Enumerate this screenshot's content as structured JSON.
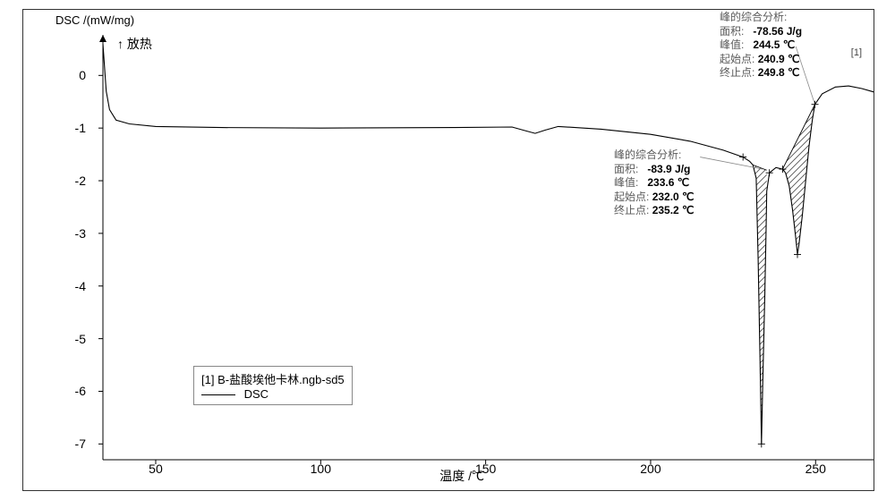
{
  "chart": {
    "type": "line",
    "ylabel": "DSC /(mW/mg)",
    "xlabel": "温度 /℃",
    "exo_label": "↑ 放热",
    "background_color": "#ffffff",
    "axis_color": "#000000",
    "line_color": "#000000",
    "hatch_color": "#555555",
    "frame_color": "#333333",
    "xlim": [
      34,
      270
    ],
    "ylim": [
      -7.3,
      0.6
    ],
    "xticks": [
      50,
      100,
      150,
      200,
      250
    ],
    "yticks": [
      -7,
      -6,
      -5,
      -4,
      -3,
      -2,
      -1,
      0
    ],
    "tick_fontsize": 14,
    "label_fontsize": 13,
    "series_mark": "[1]",
    "data": [
      [
        34,
        0.6
      ],
      [
        35,
        -0.3
      ],
      [
        36,
        -0.65
      ],
      [
        38,
        -0.85
      ],
      [
        42,
        -0.92
      ],
      [
        50,
        -0.97
      ],
      [
        70,
        -0.99
      ],
      [
        100,
        -1.0
      ],
      [
        140,
        -0.99
      ],
      [
        158,
        -0.98
      ],
      [
        162,
        -1.05
      ],
      [
        165,
        -1.1
      ],
      [
        168,
        -1.04
      ],
      [
        172,
        -0.97
      ],
      [
        185,
        -1.02
      ],
      [
        200,
        -1.12
      ],
      [
        212,
        -1.25
      ],
      [
        222,
        -1.42
      ],
      [
        228,
        -1.55
      ],
      [
        230,
        -1.63
      ],
      [
        231,
        -1.7
      ],
      [
        232,
        -1.95
      ],
      [
        232.6,
        -3.5
      ],
      [
        233.2,
        -5.5
      ],
      [
        233.6,
        -7.0
      ],
      [
        234,
        -5.8
      ],
      [
        234.6,
        -4.2
      ],
      [
        235,
        -2.9
      ],
      [
        235.2,
        -2.2
      ],
      [
        236,
        -1.85
      ],
      [
        238,
        -1.75
      ],
      [
        240,
        -1.78
      ],
      [
        240.9,
        -1.85
      ],
      [
        242,
        -2.1
      ],
      [
        243,
        -2.55
      ],
      [
        244,
        -3.1
      ],
      [
        244.5,
        -3.4
      ],
      [
        245,
        -3.2
      ],
      [
        246,
        -2.65
      ],
      [
        247,
        -2.0
      ],
      [
        248,
        -1.35
      ],
      [
        249,
        -0.85
      ],
      [
        249.8,
        -0.55
      ],
      [
        252,
        -0.35
      ],
      [
        256,
        -0.22
      ],
      [
        260,
        -0.2
      ],
      [
        264,
        -0.25
      ],
      [
        268,
        -0.32
      ]
    ],
    "baseline1": [
      [
        231,
        -1.7
      ],
      [
        235.2,
        -1.8
      ]
    ],
    "baseline2": [
      [
        240,
        -1.78
      ],
      [
        249.8,
        -0.55
      ]
    ]
  },
  "legend": {
    "line1": "[1] B-盐酸埃他卡林.ngb-sd5",
    "line2": "DSC"
  },
  "peak1": {
    "header": "峰的综合分析:",
    "area_label": "面积:",
    "area_value": "-83.9 J/g",
    "peak_label": "峰值:",
    "peak_value": "233.6 ℃",
    "onset_label": "起始点:",
    "onset_value": "232.0 ℃",
    "end_label": "终止点:",
    "end_value": "235.2 ℃",
    "pointer_from": [
      234,
      -1.78
    ],
    "pointer_to_label": [
      195,
      -2.0
    ]
  },
  "peak2": {
    "header": "峰的综合分析:",
    "area_label": "面积:",
    "area_value": "-78.56 J/g",
    "peak_label": "峰值:",
    "peak_value": "244.5 ℃",
    "onset_label": "起始点:",
    "onset_value": "240.9 ℃",
    "end_label": "终止点:",
    "end_value": "249.8 ℃",
    "pointer_from": [
      249.8,
      -0.55
    ],
    "pointer_to_label": [
      237,
      0.55
    ]
  }
}
